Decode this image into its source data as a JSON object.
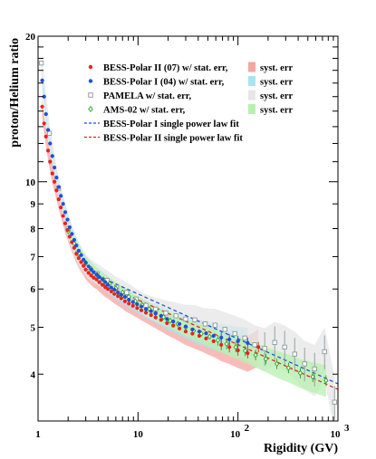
{
  "chart_data": {
    "type": "scatter",
    "title": "",
    "xlabel": "Rigidity (GV)",
    "ylabel": "proton/Helium ratio",
    "xscale": "log",
    "yscale": "log",
    "xlim": [
      1,
      1000
    ],
    "ylim": [
      3.2,
      20
    ],
    "legend_position": "top",
    "x_tick_labels": [
      {
        "value": 1,
        "base": "1",
        "exp": ""
      },
      {
        "value": 10,
        "base": "10",
        "exp": ""
      },
      {
        "value": 100,
        "base": "10",
        "exp": "2"
      },
      {
        "value": 1000,
        "base": "10",
        "exp": "3"
      }
    ],
    "y_tick_labels": [
      {
        "value": 4,
        "text": "4"
      },
      {
        "value": 5,
        "text": "5"
      },
      {
        "value": 6,
        "text": "6"
      },
      {
        "value": 7,
        "text": "7"
      },
      {
        "value": 8,
        "text": "8"
      },
      {
        "value": 9,
        "text": "9"
      },
      {
        "value": 10,
        "text": "10"
      },
      {
        "value": 20,
        "text": "20"
      }
    ],
    "legend": {
      "entries": [
        {
          "label": "BESS-Polar II (07) w/ stat. err,",
          "marker": "filled-circle",
          "color": "#e8231c"
        },
        {
          "label": "BESS-Polar I  (04) w/ stat. err,",
          "marker": "filled-circle",
          "color": "#1f4fd8"
        },
        {
          "label": "PAMELA w/ stat. err,",
          "marker": "open-square",
          "color": "#8a9a9a"
        },
        {
          "label": "AMS-02 w/ stat. err,",
          "marker": "open-diamond",
          "color": "#2aa02a"
        },
        {
          "label": "BESS-Polar I   single power law fit",
          "marker": "dashed-line",
          "color": "#1f4fd8"
        },
        {
          "label": "BESS-Polar II single power law fit",
          "marker": "dashed-line",
          "color": "#e8231c"
        }
      ],
      "syst_entries": [
        {
          "label": "syst. err",
          "color": "#f4a6a2"
        },
        {
          "label": "syst. err",
          "color": "#a8e4f0"
        },
        {
          "label": "syst. err",
          "color": "#e6e6e6"
        },
        {
          "label": "syst. err",
          "color": "#b8f0b0"
        }
      ]
    },
    "series": [
      {
        "name": "BESS-Polar II (07) w/ stat. err,",
        "color": "#e8231c",
        "marker": "filled-circle",
        "syst_color": "#f4a6a2",
        "x": [
          1.1,
          1.15,
          1.2,
          1.26,
          1.32,
          1.39,
          1.46,
          1.53,
          1.61,
          1.69,
          1.78,
          1.87,
          1.97,
          2.07,
          2.18,
          2.3,
          2.42,
          2.55,
          2.7,
          2.85,
          3.0,
          3.2,
          3.4,
          3.6,
          3.85,
          4.1,
          4.4,
          4.7,
          5.0,
          5.4,
          5.8,
          6.3,
          6.8,
          7.4,
          8.1,
          8.9,
          9.8,
          10.8,
          12,
          13.5,
          15,
          17,
          19.5,
          22.5,
          26,
          30,
          35,
          41,
          48,
          57,
          68,
          82,
          100,
          125,
          160
        ],
        "y": [
          14.3,
          13.2,
          12.4,
          11.6,
          11.0,
          10.4,
          10.0,
          9.6,
          9.2,
          8.85,
          8.5,
          8.2,
          7.95,
          7.7,
          7.5,
          7.3,
          7.1,
          6.95,
          6.82,
          6.7,
          6.58,
          6.48,
          6.4,
          6.33,
          6.28,
          6.2,
          6.12,
          6.05,
          6.0,
          5.93,
          5.86,
          5.8,
          5.74,
          5.66,
          5.6,
          5.54,
          5.48,
          5.42,
          5.36,
          5.3,
          5.24,
          5.18,
          5.1,
          5.04,
          4.97,
          4.9,
          4.85,
          4.8,
          4.74,
          4.68,
          4.6,
          4.55,
          4.48,
          4.42,
          4.55
        ]
      },
      {
        "name": "BESS-Polar I  (04) w/ stat. err,",
        "color": "#1f4fd8",
        "marker": "filled-circle",
        "syst_color": "#a8e4f0",
        "x": [
          1.1,
          1.15,
          1.2,
          1.26,
          1.32,
          1.39,
          1.46,
          1.53,
          1.61,
          1.69,
          1.78,
          1.87,
          1.97,
          2.07,
          2.18,
          2.3,
          2.42,
          2.55,
          2.7,
          2.85,
          3.0,
          3.2,
          3.4,
          3.6,
          3.85,
          4.1,
          4.4,
          4.7,
          5.0,
          5.4,
          5.8,
          6.3,
          6.8,
          7.4,
          8.1,
          8.9,
          9.8,
          10.8,
          12,
          13.5,
          15,
          17,
          19.5,
          22.5,
          26,
          30,
          35,
          41,
          48,
          57,
          68,
          82,
          100,
          125
        ],
        "y": [
          16.2,
          15.0,
          13.8,
          12.8,
          12.0,
          11.3,
          10.7,
          10.2,
          9.75,
          9.35,
          9.0,
          8.65,
          8.35,
          8.05,
          7.8,
          7.58,
          7.38,
          7.2,
          7.05,
          6.9,
          6.8,
          6.68,
          6.58,
          6.5,
          6.42,
          6.35,
          6.28,
          6.2,
          6.12,
          6.04,
          5.98,
          5.9,
          5.84,
          5.78,
          5.7,
          5.64,
          5.58,
          5.52,
          5.45,
          5.4,
          5.34,
          5.28,
          5.2,
          5.14,
          5.08,
          5.02,
          4.95,
          4.9,
          4.86,
          4.8,
          4.76,
          4.72,
          4.68,
          4.64
        ]
      },
      {
        "name": "PAMELA w/ stat. err,",
        "color": "#8a9a9a",
        "marker": "open-square",
        "syst_color": "#e6e6e6",
        "x": [
          1.08,
          1.3,
          1.6,
          2.0,
          2.5,
          3.1,
          3.9,
          4.9,
          6.1,
          7.7,
          9.6,
          12,
          15,
          19,
          24,
          30,
          37,
          47,
          59,
          74,
          93,
          117,
          147,
          185,
          233,
          293,
          369,
          464,
          584,
          735,
          925
        ],
        "y": [
          17.6,
          12.6,
          9.7,
          8.0,
          7.1,
          6.65,
          6.45,
          6.25,
          6.05,
          5.9,
          5.72,
          5.55,
          5.45,
          5.35,
          5.28,
          5.2,
          5.18,
          5.08,
          5.05,
          4.95,
          4.85,
          4.75,
          4.6,
          4.52,
          4.65,
          4.55,
          4.4,
          4.2,
          4.1,
          4.45,
          3.5
        ]
      },
      {
        "name": "AMS-02 w/ stat. err,",
        "color": "#2aa02a",
        "marker": "open-diamond",
        "syst_color": "#b8f0b0",
        "x": [
          2.0,
          2.3,
          2.6,
          3.0,
          3.4,
          3.9,
          4.5,
          5.2,
          6.0,
          7.0,
          8.1,
          9.4,
          11,
          13,
          15,
          18,
          21,
          25,
          30,
          36,
          43,
          52,
          63,
          77,
          95,
          118,
          150,
          190,
          245,
          320,
          420,
          560,
          760
        ],
        "y": [
          7.9,
          7.45,
          7.1,
          6.8,
          6.6,
          6.42,
          6.28,
          6.15,
          6.02,
          5.9,
          5.78,
          5.66,
          5.56,
          5.45,
          5.35,
          5.25,
          5.16,
          5.08,
          5.0,
          4.92,
          4.85,
          4.78,
          4.7,
          4.62,
          4.55,
          4.47,
          4.38,
          4.3,
          4.2,
          4.12,
          4.02,
          3.95,
          3.88
        ]
      }
    ],
    "fits": [
      {
        "name": "BESS-Polar I   single power law fit",
        "color": "#1f4fd8",
        "x": [
          4,
          1000
        ],
        "y": [
          6.38,
          3.82
        ]
      },
      {
        "name": "BESS-Polar II single power law fit",
        "color": "#e8231c",
        "x": [
          4,
          1000
        ],
        "y": [
          6.2,
          3.72
        ]
      }
    ]
  }
}
